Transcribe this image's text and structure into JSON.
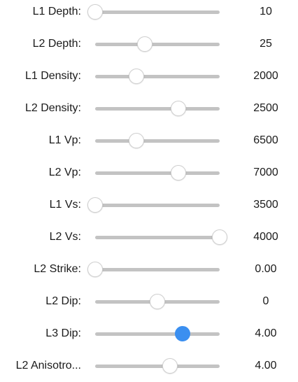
{
  "colors": {
    "track": "#c3c3c3",
    "thumb": "#ffffff",
    "thumb_active": "#3b8ff0"
  },
  "rows": [
    {
      "label": "L1 Depth:",
      "value": "10",
      "level": 0.0,
      "active": false
    },
    {
      "label": "L2 Depth:",
      "value": "25",
      "level": 0.4,
      "active": false
    },
    {
      "label": "L1 Density:",
      "value": "2000",
      "level": 0.33,
      "active": false
    },
    {
      "label": "L2 Density:",
      "value": "2500",
      "level": 0.67,
      "active": false
    },
    {
      "label": "L1 Vp:",
      "value": "6500",
      "level": 0.33,
      "active": false
    },
    {
      "label": "L2 Vp:",
      "value": "7000",
      "level": 0.67,
      "active": false
    },
    {
      "label": "L1 Vs:",
      "value": "3500",
      "level": 0.0,
      "active": false
    },
    {
      "label": "L2 Vs:",
      "value": "4000",
      "level": 1.0,
      "active": false
    },
    {
      "label": "L2 Strike:",
      "value": "0.00",
      "level": 0.0,
      "active": false
    },
    {
      "label": "L2 Dip:",
      "value": "0",
      "level": 0.5,
      "active": false
    },
    {
      "label": "L3 Dip:",
      "value": "4.00",
      "level": 0.7,
      "active": true
    },
    {
      "label": "L2 Anisotro...",
      "value": "4.00",
      "level": 0.6,
      "active": false
    }
  ]
}
